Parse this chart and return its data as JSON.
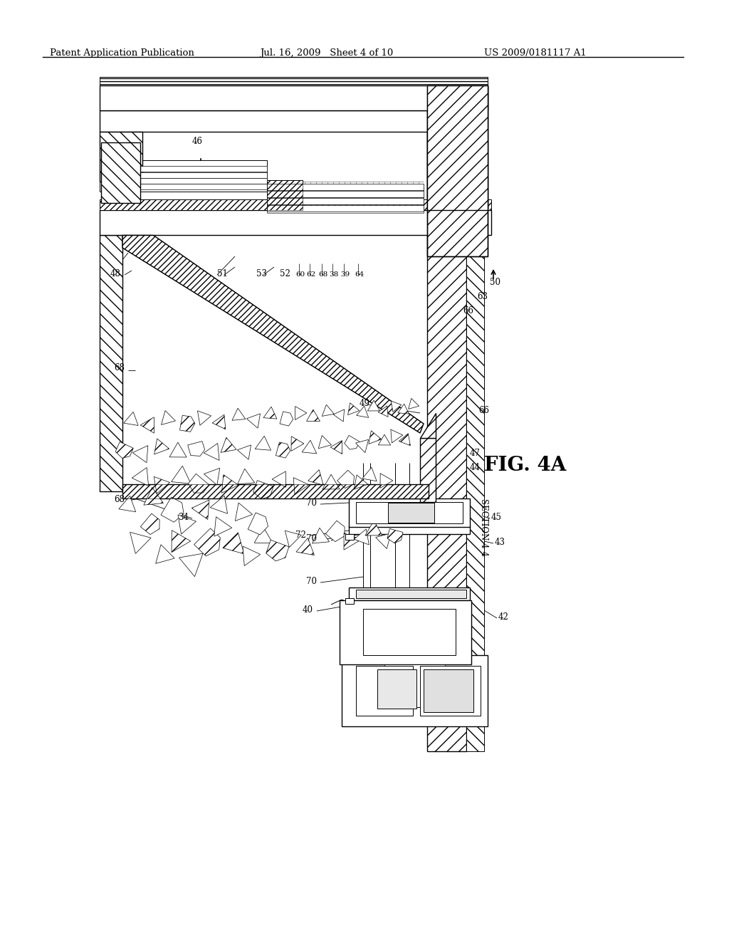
{
  "background_color": "#ffffff",
  "page_width": 10.24,
  "page_height": 13.2,
  "header_text_left": "Patent Application Publication",
  "header_text_mid": "Jul. 16, 2009   Sheet 4 of 10",
  "header_text_right": "US 2009/0181117 A1"
}
